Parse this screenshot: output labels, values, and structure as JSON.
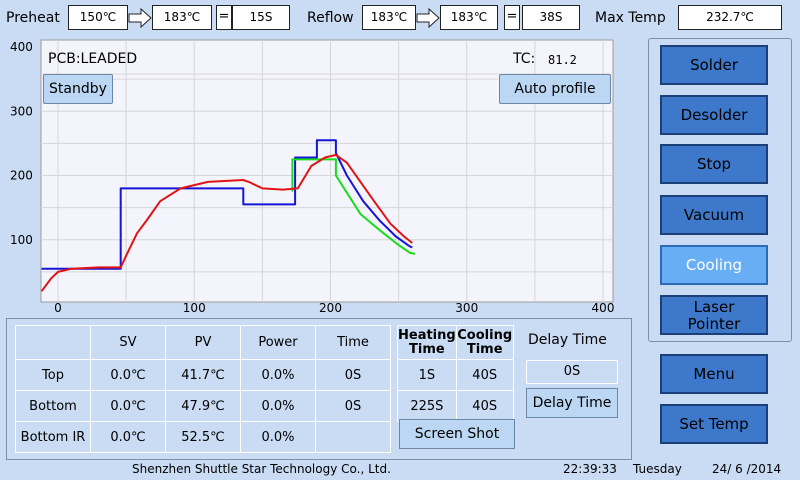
{
  "top_bar": {
    "preheat_label": "Preheat",
    "preheat_start": "150℃",
    "preheat_end": "183℃",
    "equals": "=",
    "preheat_time": "15S",
    "reflow_label": "Reflow",
    "reflow_start": "183℃",
    "reflow_end": "183℃",
    "reflow_time": "38S",
    "max_temp_label": "Max Temp",
    "max_temp_value": "232.7℃"
  },
  "chart_panel": {
    "pcb_label": "PCB:LEADED",
    "tc_label": "TC:",
    "tc_value": "81.2",
    "standby_button": "Standby",
    "auto_profile_button": "Auto profile"
  },
  "chart_data": {
    "type": "line",
    "xlim": [
      0,
      400
    ],
    "ylim": [
      0,
      400
    ],
    "x_ticks": [
      "0",
      "100",
      "200",
      "300",
      "400"
    ],
    "y_ticks": [
      "100",
      "200",
      "300",
      "400"
    ],
    "grid": true,
    "colors": {
      "blue": "#1515d6",
      "green": "#18dd18",
      "red": "#e01414"
    },
    "series": [
      {
        "color": "blue",
        "points": [
          [
            -12,
            55
          ],
          [
            46,
            55
          ],
          [
            46,
            180
          ],
          [
            136,
            180
          ],
          [
            136,
            155
          ],
          [
            174,
            155
          ],
          [
            174,
            228
          ],
          [
            190,
            228
          ],
          [
            190,
            255
          ],
          [
            204,
            255
          ],
          [
            204,
            235
          ],
          [
            212,
            200
          ],
          [
            224,
            160
          ],
          [
            236,
            130
          ],
          [
            248,
            105
          ],
          [
            258,
            90
          ],
          [
            260,
            88
          ]
        ]
      },
      {
        "color": "green",
        "points": [
          [
            172,
            175
          ],
          [
            172,
            225
          ],
          [
            204,
            225
          ],
          [
            204,
            200
          ],
          [
            210,
            180
          ],
          [
            222,
            140
          ],
          [
            236,
            115
          ],
          [
            248,
            95
          ],
          [
            258,
            80
          ],
          [
            262,
            78
          ]
        ]
      },
      {
        "color": "red",
        "points": [
          [
            -12,
            20
          ],
          [
            -5,
            40
          ],
          [
            0,
            50
          ],
          [
            10,
            55
          ],
          [
            30,
            57
          ],
          [
            46,
            57
          ],
          [
            50,
            75
          ],
          [
            58,
            110
          ],
          [
            65,
            130
          ],
          [
            75,
            160
          ],
          [
            90,
            180
          ],
          [
            110,
            190
          ],
          [
            136,
            193
          ],
          [
            140,
            190
          ],
          [
            150,
            180
          ],
          [
            165,
            178
          ],
          [
            176,
            180
          ],
          [
            186,
            215
          ],
          [
            196,
            228
          ],
          [
            204,
            232
          ],
          [
            212,
            220
          ],
          [
            222,
            190
          ],
          [
            232,
            160
          ],
          [
            244,
            125
          ],
          [
            254,
            105
          ],
          [
            260,
            95
          ]
        ]
      }
    ]
  },
  "right_panel": {
    "solder": "Solder",
    "desolder": "Desolder",
    "stop": "Stop",
    "vacuum": "Vacuum",
    "cooling": "Cooling",
    "laser_line1": "Laser",
    "laser_line2": "Pointer",
    "menu": "Menu",
    "set_temp": "Set Temp"
  },
  "table": {
    "headers": [
      "SV",
      "PV",
      "Power",
      "Time"
    ],
    "rows": [
      {
        "name": "Top",
        "sv": "0.0℃",
        "pv": "41.7℃",
        "power": "0.0%",
        "time": "0S"
      },
      {
        "name": "Bottom",
        "sv": "0.0℃",
        "pv": "47.9℃",
        "power": "0.0%",
        "time": "0S"
      },
      {
        "name": "Bottom IR",
        "sv": "0.0℃",
        "pv": "52.5℃",
        "power": "0.0%",
        "time": ""
      }
    ],
    "heating_line1": "Heating",
    "heating_line2": "Time",
    "cooling_line1": "Cooling",
    "cooling_line2": "Time",
    "heat_cool_rows": [
      {
        "heating": "1S",
        "cooling": "40S"
      },
      {
        "heating": "225S",
        "cooling": "40S"
      }
    ],
    "screen_shot_button": "Screen Shot",
    "delay_time_label": "Delay Time",
    "delay_time_value": "0S",
    "delay_time_button": "Delay Time"
  },
  "footer": {
    "company": "Shenzhen Shuttle Star Technology Co., Ltd.",
    "time": "22:39:33",
    "day": "Tuesday",
    "date": "24/ 6 /2014"
  }
}
